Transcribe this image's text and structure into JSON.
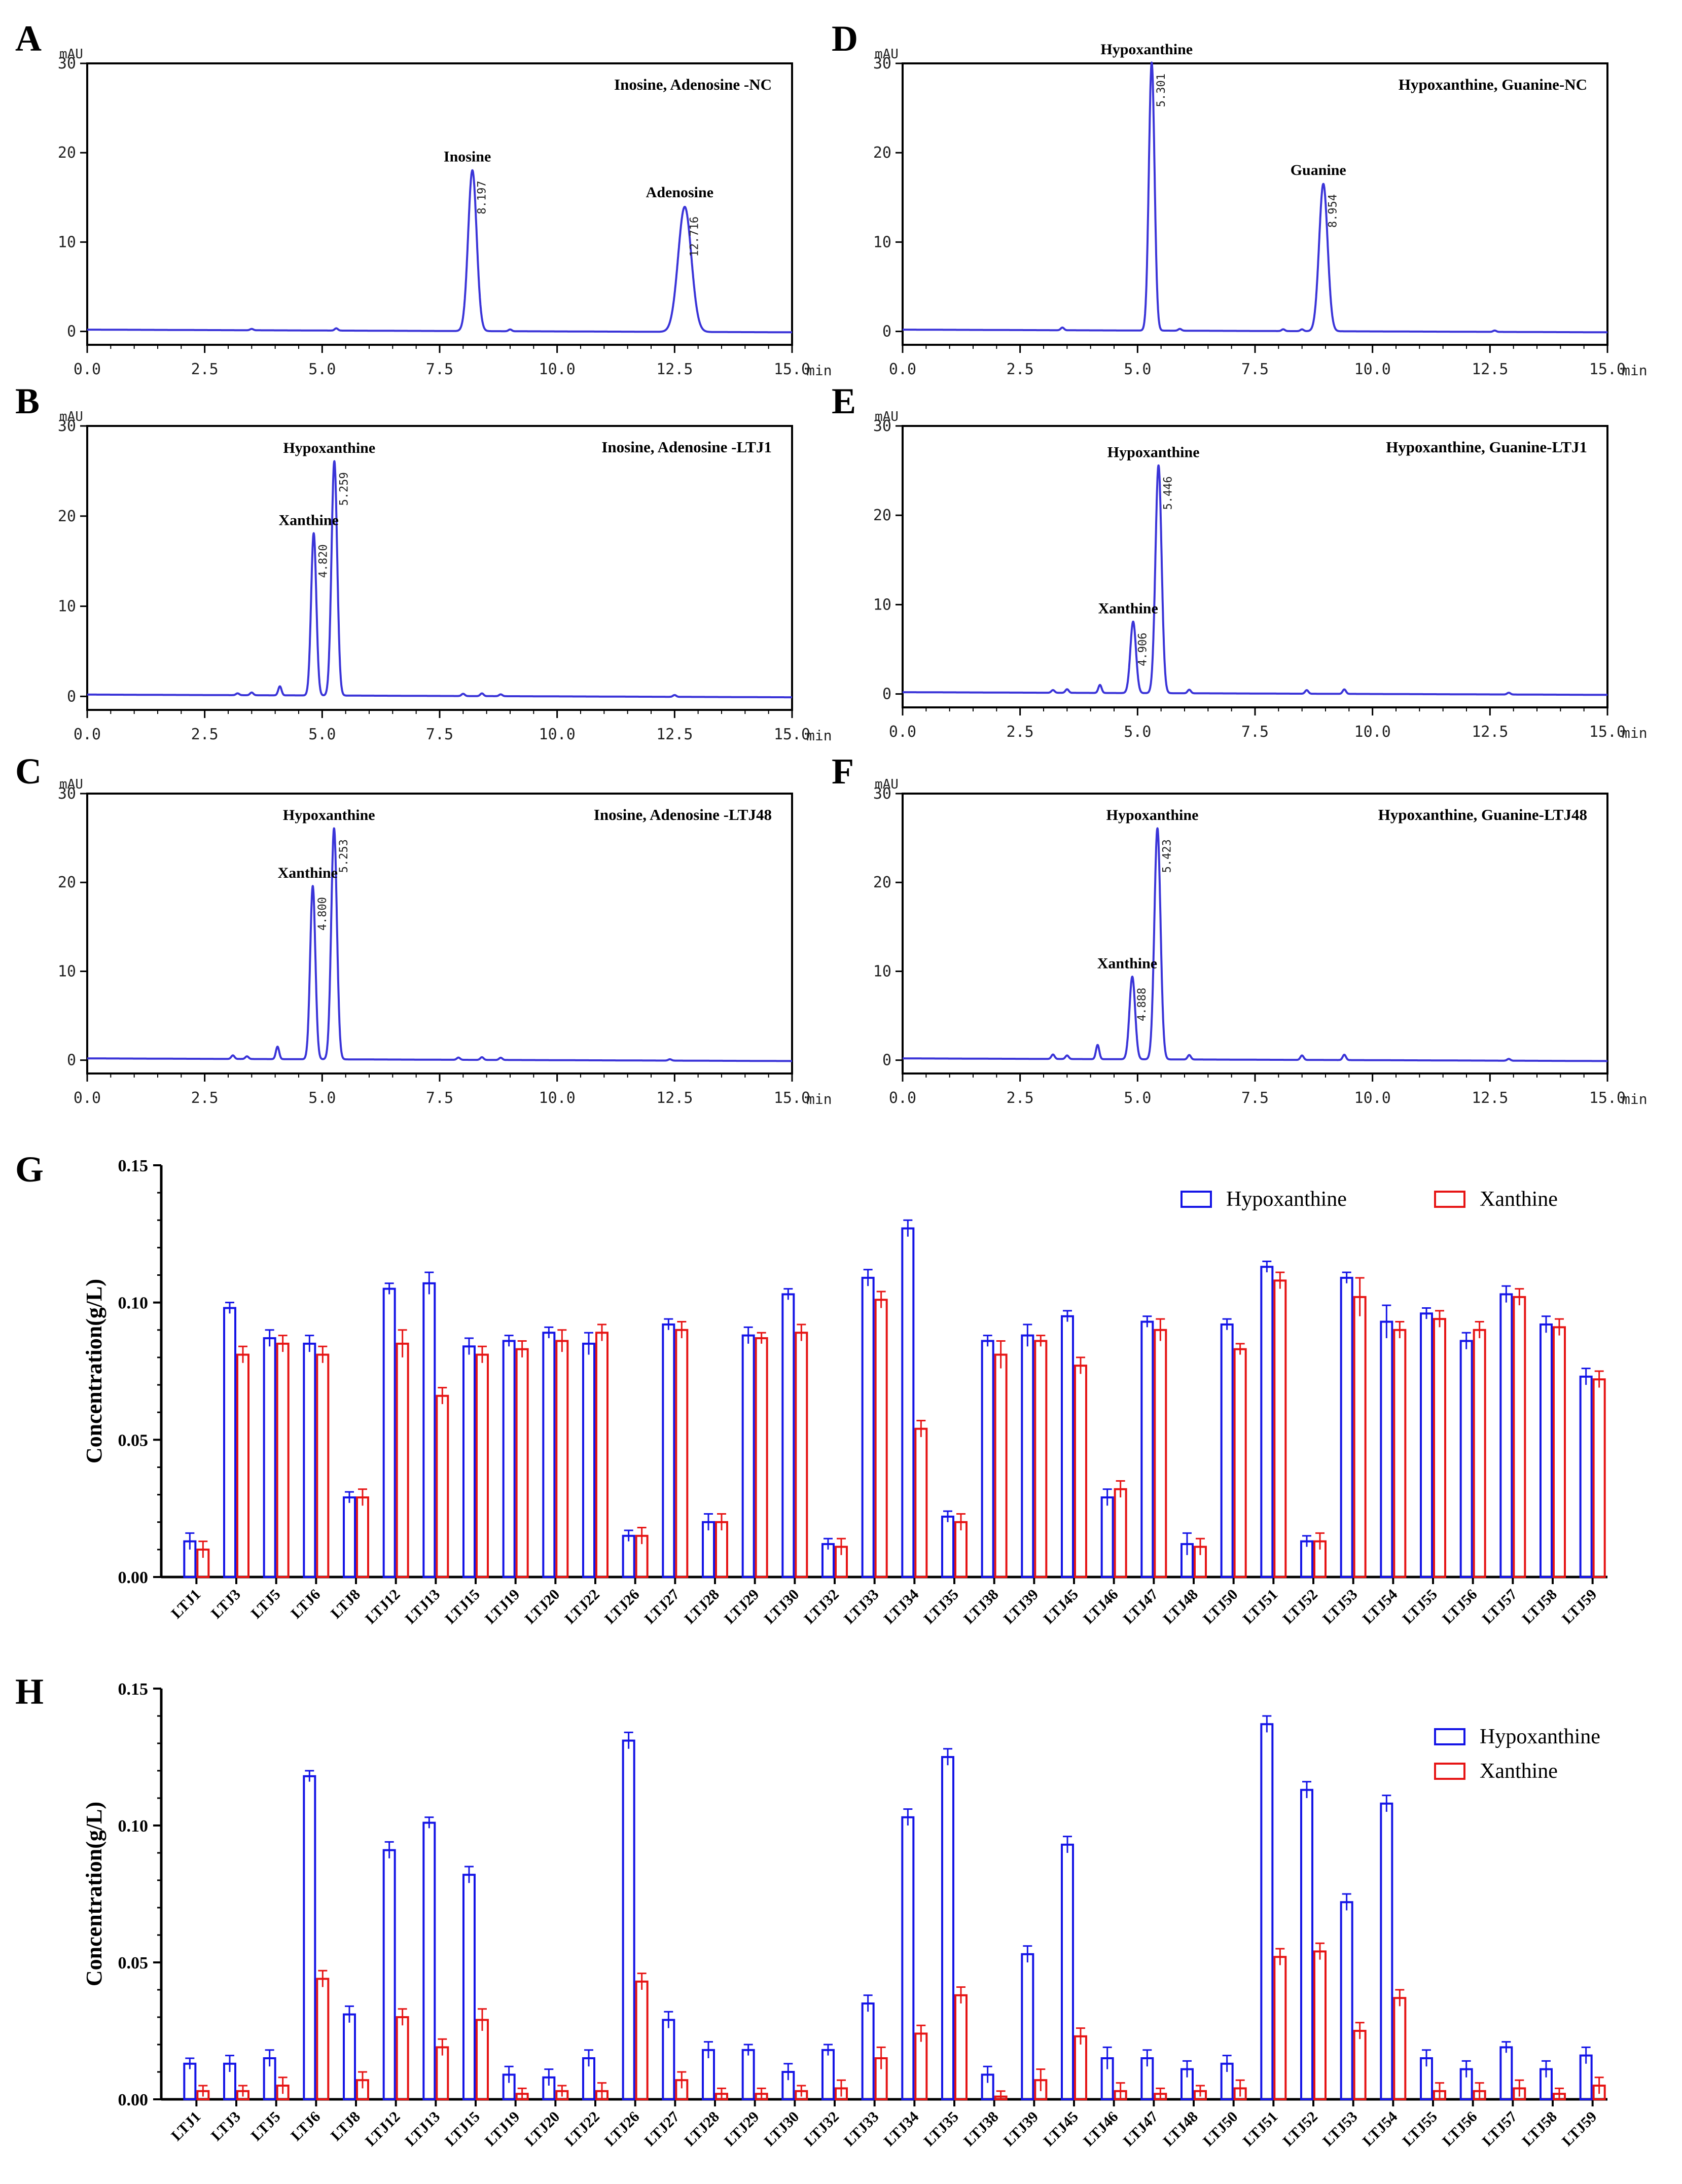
{
  "colors": {
    "trace": "#3a34d8",
    "hypoxanthine": "#1414e6",
    "xanthine": "#e61414",
    "axis": "#000000"
  },
  "chart_data": [
    {
      "panel": "A",
      "type": "line",
      "title": "Inosine, Adenosine -NC",
      "ylabel": "mAU",
      "xlabel": "min",
      "xlim": [
        0,
        15
      ],
      "ylim": [
        -1.5,
        30
      ],
      "xticks": [
        "0.0",
        "2.5",
        "5.0",
        "7.5",
        "10.0",
        "12.5",
        "15.0"
      ],
      "yticks": [
        "0",
        "10",
        "20",
        "30"
      ],
      "peaks": [
        {
          "x": 8.197,
          "height": 18,
          "width": 0.09,
          "name": "Inosine",
          "rt": "8.197"
        },
        {
          "x": 12.716,
          "height": 14,
          "width": 0.14,
          "name": "Adenosine",
          "rt": "12.716"
        }
      ],
      "minor_peaks": [
        {
          "x": 3.5,
          "height": 0.15
        },
        {
          "x": 5.3,
          "height": 0.25
        },
        {
          "x": 9.0,
          "height": 0.2
        }
      ]
    },
    {
      "panel": "B",
      "type": "line",
      "title": "Inosine, Adenosine -LTJ1",
      "ylabel": "mAU",
      "xlabel": "min",
      "xlim": [
        0,
        15
      ],
      "ylim": [
        -1.5,
        30
      ],
      "xticks": [
        "0.0",
        "2.5",
        "5.0",
        "7.5",
        "10.0",
        "12.5",
        "15.0"
      ],
      "yticks": [
        "0",
        "10",
        "20",
        "30"
      ],
      "peaks": [
        {
          "x": 4.82,
          "height": 18,
          "width": 0.055,
          "name": "Xanthine",
          "rt": "4.820"
        },
        {
          "x": 5.259,
          "height": 26,
          "width": 0.06,
          "name": "Hypoxanthine",
          "rt": "5.259"
        }
      ],
      "minor_peaks": [
        {
          "x": 3.2,
          "height": 0.2
        },
        {
          "x": 3.5,
          "height": 0.3
        },
        {
          "x": 4.1,
          "height": 1.0
        },
        {
          "x": 8.0,
          "height": 0.25
        },
        {
          "x": 8.4,
          "height": 0.3
        },
        {
          "x": 8.8,
          "height": 0.2
        },
        {
          "x": 12.5,
          "height": 0.2
        }
      ]
    },
    {
      "panel": "C",
      "type": "line",
      "title": "Inosine, Adenosine -LTJ48",
      "ylabel": "mAU",
      "xlabel": "min",
      "xlim": [
        0,
        15
      ],
      "ylim": [
        -1.5,
        30
      ],
      "xticks": [
        "0.0",
        "2.5",
        "5.0",
        "7.5",
        "10.0",
        "12.5",
        "15.0"
      ],
      "yticks": [
        "0",
        "10",
        "20",
        "30"
      ],
      "peaks": [
        {
          "x": 4.8,
          "height": 19.5,
          "width": 0.055,
          "name": "Xanthine",
          "rt": "4.800"
        },
        {
          "x": 5.253,
          "height": 26,
          "width": 0.06,
          "name": "Hypoxanthine",
          "rt": "5.253"
        }
      ],
      "minor_peaks": [
        {
          "x": 3.1,
          "height": 0.4
        },
        {
          "x": 3.4,
          "height": 0.3
        },
        {
          "x": 4.05,
          "height": 1.4
        },
        {
          "x": 7.9,
          "height": 0.25
        },
        {
          "x": 8.4,
          "height": 0.3
        },
        {
          "x": 8.8,
          "height": 0.25
        },
        {
          "x": 12.4,
          "height": 0.15
        }
      ]
    },
    {
      "panel": "D",
      "type": "line",
      "title": "Hypoxanthine, Guanine-NC",
      "ylabel": "mAU",
      "xlabel": "min",
      "xlim": [
        0,
        15
      ],
      "ylim": [
        -1.5,
        30
      ],
      "xticks": [
        "0.0",
        "2.5",
        "5.0",
        "7.5",
        "10.0",
        "12.5",
        "15.0"
      ],
      "yticks": [
        "0",
        "10",
        "20",
        "30"
      ],
      "peaks": [
        {
          "x": 5.301,
          "height": 30,
          "width": 0.06,
          "name": "Hypoxanthine",
          "rt": "5.301"
        },
        {
          "x": 8.954,
          "height": 16.5,
          "width": 0.09,
          "name": "Guanine",
          "rt": "8.954"
        }
      ],
      "minor_peaks": [
        {
          "x": 3.4,
          "height": 0.3
        },
        {
          "x": 5.9,
          "height": 0.2
        },
        {
          "x": 8.1,
          "height": 0.2
        },
        {
          "x": 8.5,
          "height": 0.2
        },
        {
          "x": 12.6,
          "height": 0.15
        }
      ]
    },
    {
      "panel": "E",
      "type": "line",
      "title": "Hypoxanthine, Guanine-LTJ1",
      "ylabel": "mAU",
      "xlabel": "min",
      "xlim": [
        0,
        15
      ],
      "ylim": [
        -1.5,
        30
      ],
      "xticks": [
        "0.0",
        "2.5",
        "5.0",
        "7.5",
        "10.0",
        "12.5",
        "15.0"
      ],
      "yticks": [
        "0",
        "10",
        "20",
        "30"
      ],
      "peaks": [
        {
          "x": 4.906,
          "height": 8,
          "width": 0.06,
          "name": "Xanthine",
          "rt": "4.906"
        },
        {
          "x": 5.446,
          "height": 25.5,
          "width": 0.065,
          "name": "Hypoxanthine",
          "rt": "5.446"
        }
      ],
      "minor_peaks": [
        {
          "x": 3.2,
          "height": 0.3
        },
        {
          "x": 3.5,
          "height": 0.4
        },
        {
          "x": 4.2,
          "height": 0.9
        },
        {
          "x": 6.1,
          "height": 0.4
        },
        {
          "x": 8.6,
          "height": 0.4
        },
        {
          "x": 9.4,
          "height": 0.5
        },
        {
          "x": 12.9,
          "height": 0.2
        }
      ]
    },
    {
      "panel": "F",
      "type": "line",
      "title": "Hypoxanthine, Guanine-LTJ48",
      "ylabel": "mAU",
      "xlabel": "min",
      "xlim": [
        0,
        15
      ],
      "ylim": [
        -1.5,
        30
      ],
      "xticks": [
        "0.0",
        "2.5",
        "5.0",
        "7.5",
        "10.0",
        "12.5",
        "15.0"
      ],
      "yticks": [
        "0",
        "10",
        "20",
        "30"
      ],
      "peaks": [
        {
          "x": 4.888,
          "height": 9.3,
          "width": 0.06,
          "name": "Xanthine",
          "rt": "4.888"
        },
        {
          "x": 5.423,
          "height": 26,
          "width": 0.065,
          "name": "Hypoxanthine",
          "rt": "5.423"
        }
      ],
      "minor_peaks": [
        {
          "x": 3.2,
          "height": 0.5
        },
        {
          "x": 3.5,
          "height": 0.4
        },
        {
          "x": 4.15,
          "height": 1.6
        },
        {
          "x": 6.1,
          "height": 0.5
        },
        {
          "x": 8.5,
          "height": 0.5
        },
        {
          "x": 9.4,
          "height": 0.6
        },
        {
          "x": 12.9,
          "height": 0.2
        }
      ]
    },
    {
      "panel": "G",
      "type": "bar",
      "ylabel": "Concentration(g/L)",
      "ylim": [
        0,
        0.15
      ],
      "yticks": [
        "0.00",
        "0.05",
        "0.10",
        "0.15"
      ],
      "legend": {
        "position": "top-right",
        "entries": [
          "Hypoxanthine",
          "Xanthine"
        ]
      },
      "categories": [
        "LTJ1",
        "LTJ3",
        "LTJ5",
        "LTJ6",
        "LTJ8",
        "LTJ12",
        "LTJ13",
        "LTJ15",
        "LTJ19",
        "LTJ20",
        "LTJ22",
        "LTJ26",
        "LTJ27",
        "LTJ28",
        "LTJ29",
        "LTJ30",
        "LTJ32",
        "LTJ33",
        "LTJ34",
        "LTJ35",
        "LTJ38",
        "LTJ39",
        "LTJ45",
        "LTJ46",
        "LTJ47",
        "LTJ48",
        "LTJ50",
        "LTJ51",
        "LTJ52",
        "LTJ53",
        "LTJ54",
        "LTJ55",
        "LTJ56",
        "LTJ57",
        "LTJ58",
        "LTJ59"
      ],
      "series": [
        {
          "name": "Hypoxanthine",
          "values": [
            0.013,
            0.098,
            0.087,
            0.085,
            0.029,
            0.105,
            0.107,
            0.084,
            0.086,
            0.089,
            0.085,
            0.015,
            0.092,
            0.02,
            0.088,
            0.103,
            0.012,
            0.109,
            0.127,
            0.022,
            0.086,
            0.088,
            0.095,
            0.029,
            0.093,
            0.012,
            0.092,
            0.113,
            0.013,
            0.109,
            0.093,
            0.096,
            0.086,
            0.103,
            0.092,
            0.073
          ],
          "errors": [
            0.003,
            0.002,
            0.003,
            0.003,
            0.002,
            0.002,
            0.004,
            0.003,
            0.002,
            0.002,
            0.004,
            0.002,
            0.002,
            0.003,
            0.003,
            0.002,
            0.002,
            0.003,
            0.003,
            0.002,
            0.002,
            0.004,
            0.002,
            0.003,
            0.002,
            0.004,
            0.002,
            0.002,
            0.002,
            0.002,
            0.006,
            0.002,
            0.003,
            0.003,
            0.003,
            0.003
          ]
        },
        {
          "name": "Xanthine",
          "values": [
            0.01,
            0.081,
            0.085,
            0.081,
            0.029,
            0.085,
            0.066,
            0.081,
            0.083,
            0.086,
            0.089,
            0.015,
            0.09,
            0.02,
            0.087,
            0.089,
            0.011,
            0.101,
            0.054,
            0.02,
            0.081,
            0.086,
            0.077,
            0.032,
            0.09,
            0.011,
            0.083,
            0.108,
            0.013,
            0.102,
            0.09,
            0.094,
            0.09,
            0.102,
            0.091,
            0.072
          ],
          "errors": [
            0.003,
            0.003,
            0.003,
            0.003,
            0.003,
            0.005,
            0.003,
            0.003,
            0.003,
            0.004,
            0.003,
            0.003,
            0.003,
            0.003,
            0.002,
            0.003,
            0.003,
            0.003,
            0.003,
            0.003,
            0.005,
            0.002,
            0.003,
            0.003,
            0.004,
            0.003,
            0.002,
            0.003,
            0.003,
            0.007,
            0.003,
            0.003,
            0.003,
            0.003,
            0.003,
            0.003
          ]
        }
      ]
    },
    {
      "panel": "H",
      "type": "bar",
      "ylabel": "Concentration(g/L)",
      "ylim": [
        0,
        0.15
      ],
      "yticks": [
        "0.00",
        "0.05",
        "0.10",
        "0.15"
      ],
      "legend": {
        "position": "top-right",
        "entries": [
          "Hypoxanthine",
          "Xanthine"
        ]
      },
      "categories": [
        "LTJ1",
        "LTJ3",
        "LTJ5",
        "LTJ6",
        "LTJ8",
        "LTJ12",
        "LTJ13",
        "LTJ15",
        "LTJ19",
        "LTJ20",
        "LTJ22",
        "LTJ26",
        "LTJ27",
        "LTJ28",
        "LTJ29",
        "LTJ30",
        "LTJ32",
        "LTJ33",
        "LTJ34",
        "LTJ35",
        "LTJ38",
        "LTJ39",
        "LTJ45",
        "LTJ46",
        "LTJ47",
        "LTJ48",
        "LTJ50",
        "LTJ51",
        "LTJ52",
        "LTJ53",
        "LTJ54",
        "LTJ55",
        "LTJ56",
        "LTJ57",
        "LTJ58",
        "LTJ59"
      ],
      "series": [
        {
          "name": "Hypoxanthine",
          "values": [
            0.013,
            0.013,
            0.015,
            0.118,
            0.031,
            0.091,
            0.101,
            0.082,
            0.009,
            0.008,
            0.015,
            0.131,
            0.029,
            0.018,
            0.018,
            0.01,
            0.018,
            0.035,
            0.103,
            0.125,
            0.009,
            0.053,
            0.093,
            0.015,
            0.015,
            0.011,
            0.013,
            0.137,
            0.113,
            0.072,
            0.108,
            0.015,
            0.011,
            0.019,
            0.011,
            0.016
          ],
          "errors": [
            0.002,
            0.003,
            0.003,
            0.002,
            0.003,
            0.003,
            0.002,
            0.003,
            0.003,
            0.003,
            0.003,
            0.003,
            0.003,
            0.003,
            0.002,
            0.003,
            0.002,
            0.003,
            0.003,
            0.003,
            0.003,
            0.003,
            0.003,
            0.004,
            0.003,
            0.003,
            0.003,
            0.003,
            0.003,
            0.003,
            0.003,
            0.003,
            0.003,
            0.002,
            0.003,
            0.003
          ]
        },
        {
          "name": "Xanthine",
          "values": [
            0.003,
            0.003,
            0.005,
            0.044,
            0.007,
            0.03,
            0.019,
            0.029,
            0.002,
            0.003,
            0.003,
            0.043,
            0.007,
            0.002,
            0.002,
            0.003,
            0.004,
            0.015,
            0.024,
            0.038,
            0.001,
            0.007,
            0.023,
            0.003,
            0.002,
            0.003,
            0.004,
            0.052,
            0.054,
            0.025,
            0.037,
            0.003,
            0.003,
            0.004,
            0.002,
            0.005
          ],
          "errors": [
            0.002,
            0.002,
            0.003,
            0.003,
            0.003,
            0.003,
            0.003,
            0.004,
            0.002,
            0.002,
            0.003,
            0.003,
            0.003,
            0.002,
            0.002,
            0.002,
            0.003,
            0.004,
            0.003,
            0.003,
            0.002,
            0.004,
            0.003,
            0.003,
            0.002,
            0.002,
            0.003,
            0.003,
            0.003,
            0.003,
            0.003,
            0.003,
            0.003,
            0.003,
            0.002,
            0.003
          ]
        }
      ]
    }
  ]
}
